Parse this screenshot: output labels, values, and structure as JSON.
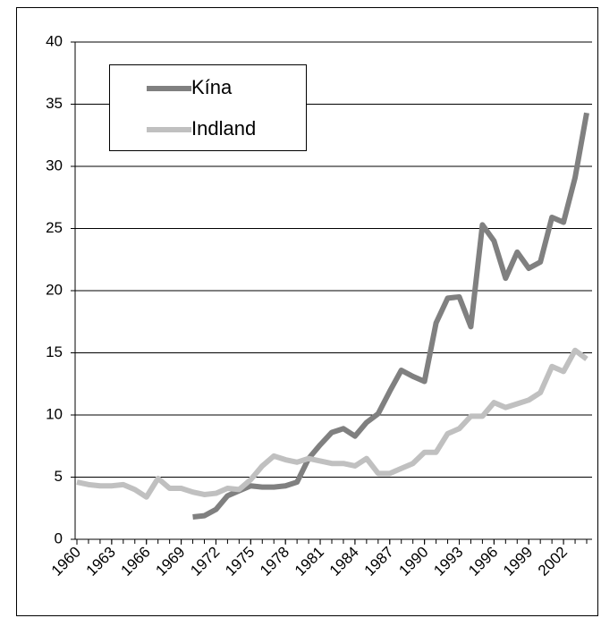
{
  "chart_data": {
    "type": "line",
    "x": [
      1960,
      1961,
      1962,
      1963,
      1964,
      1965,
      1966,
      1967,
      1968,
      1969,
      1970,
      1971,
      1972,
      1973,
      1974,
      1975,
      1976,
      1977,
      1978,
      1979,
      1980,
      1981,
      1982,
      1983,
      1984,
      1985,
      1986,
      1987,
      1988,
      1989,
      1990,
      1991,
      1992,
      1993,
      1994,
      1995,
      1996,
      1997,
      1998,
      1999,
      2000,
      2001,
      2002,
      2003,
      2004
    ],
    "series": [
      {
        "name": "Kína",
        "color": "#808080",
        "values": [
          null,
          null,
          null,
          null,
          null,
          null,
          null,
          null,
          null,
          null,
          1.8,
          1.9,
          2.4,
          3.5,
          3.9,
          4.3,
          4.2,
          4.2,
          4.3,
          4.6,
          6.5,
          7.6,
          8.6,
          8.9,
          8.3,
          9.4,
          10.1,
          11.9,
          13.6,
          13.1,
          12.7,
          17.4,
          19.4,
          19.5,
          17.1,
          25.3,
          24.0,
          21.0,
          23.1,
          21.8,
          22.3,
          25.9,
          25.5,
          29.1,
          34.3
        ]
      },
      {
        "name": "Indland",
        "color": "#c0c0c0",
        "values": [
          4.6,
          4.4,
          4.3,
          4.3,
          4.4,
          4.0,
          3.4,
          4.9,
          4.1,
          4.1,
          3.8,
          3.6,
          3.7,
          4.1,
          4.0,
          4.8,
          5.9,
          6.7,
          6.4,
          6.2,
          6.5,
          6.3,
          6.1,
          6.1,
          5.9,
          6.5,
          5.3,
          5.3,
          5.7,
          6.1,
          7.0,
          7.0,
          8.5,
          8.9,
          9.9,
          9.9,
          11.0,
          10.6,
          10.9,
          11.2,
          11.8,
          13.9,
          13.5,
          15.2,
          14.5
        ]
      }
    ],
    "xlim": [
      1960,
      2004
    ],
    "xticks": [
      1960,
      1963,
      1966,
      1969,
      1972,
      1975,
      1978,
      1981,
      1984,
      1987,
      1990,
      1993,
      1996,
      1999,
      2002
    ],
    "ylim": [
      0,
      40
    ],
    "yticks": [
      0,
      5,
      10,
      15,
      20,
      25,
      30,
      35,
      40
    ],
    "grid": true,
    "legend": "upper left"
  }
}
